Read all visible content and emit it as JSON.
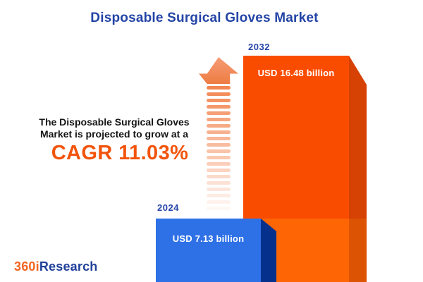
{
  "title": "Disposable Surgical Gloves Market",
  "intro": {
    "text": "The Disposable Surgical Gloves Market is projected to grow at a",
    "cagr": "CAGR 11.03%"
  },
  "bars": [
    {
      "year": "2032",
      "value": "USD 16.48 billion"
    },
    {
      "year": "2024",
      "value": "USD 7.13 billion"
    }
  ],
  "logo": {
    "prefix": "360i",
    "suffix": "Research"
  },
  "icons": {
    "growth_arrow": "dashed-up-arrow-icon"
  },
  "colors": {
    "title_blue": "#2344a6",
    "year_label_blue": "#2445a7",
    "cagr_orange": "#f2540c",
    "bar_2032_front_top": "#fa4c01",
    "bar_2032_front_bottom": "#fe6505",
    "bar_2032_side_top": "#d64104",
    "bar_2032_side_bottom": "#dc5303",
    "bar_2024_front": "#2e71e6",
    "bar_2024_side": "#05318c",
    "arrow_orange": "#f2814a",
    "value_text_white": "#ffffff",
    "logo_orange": "#f26522",
    "logo_blue": "#21409a",
    "background": "#ffffff"
  },
  "chart_data": {
    "type": "bar",
    "categories": [
      "2024",
      "2032"
    ],
    "values": [
      7.13,
      16.48
    ],
    "unit": "USD billion",
    "data_labels": [
      "USD 7.13 billion",
      "USD 16.48 billion"
    ],
    "title": "Disposable Surgical Gloves Market",
    "annotation": "The Disposable Surgical Gloves Market is projected to grow at a CAGR 11.03%",
    "cagr_percent": 11.03,
    "legend": false,
    "axes_shown": false,
    "grid": false,
    "bar_colors": {
      "2024": "#2e71e6",
      "2032": "#fa4c01"
    }
  }
}
